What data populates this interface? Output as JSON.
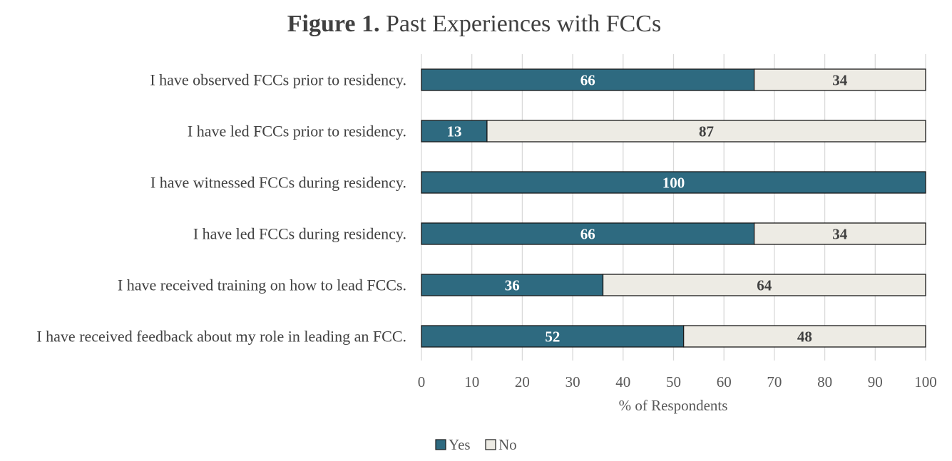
{
  "chart_data": {
    "type": "bar",
    "orientation": "horizontal",
    "stacked": true,
    "title_bold": "Figure 1.",
    "title_rest": "Past Experiences with FCCs",
    "categories": [
      "I have observed FCCs prior to residency.",
      "I have led FCCs prior to residency.",
      "I have witnessed FCCs during residency.",
      "I have led FCCs during residency.",
      "I have received training on how to lead FCCs.",
      "I have received feedback about my role in leading an FCC."
    ],
    "series": [
      {
        "name": "Yes",
        "color": "#2e6a80",
        "label_color": "#ffffff",
        "values": [
          66,
          13,
          100,
          66,
          36,
          52
        ]
      },
      {
        "name": "No",
        "color": "#edebe4",
        "label_color": "#404040",
        "values": [
          34,
          87,
          0,
          34,
          64,
          48
        ]
      }
    ],
    "xlabel": "% of Respondents",
    "ylabel": "",
    "xlim": [
      0,
      100
    ],
    "x_ticks": [
      "0",
      "10",
      "20",
      "30",
      "40",
      "50",
      "60",
      "70",
      "80",
      "90",
      "100"
    ],
    "grid": true,
    "legend_position": "bottom"
  }
}
